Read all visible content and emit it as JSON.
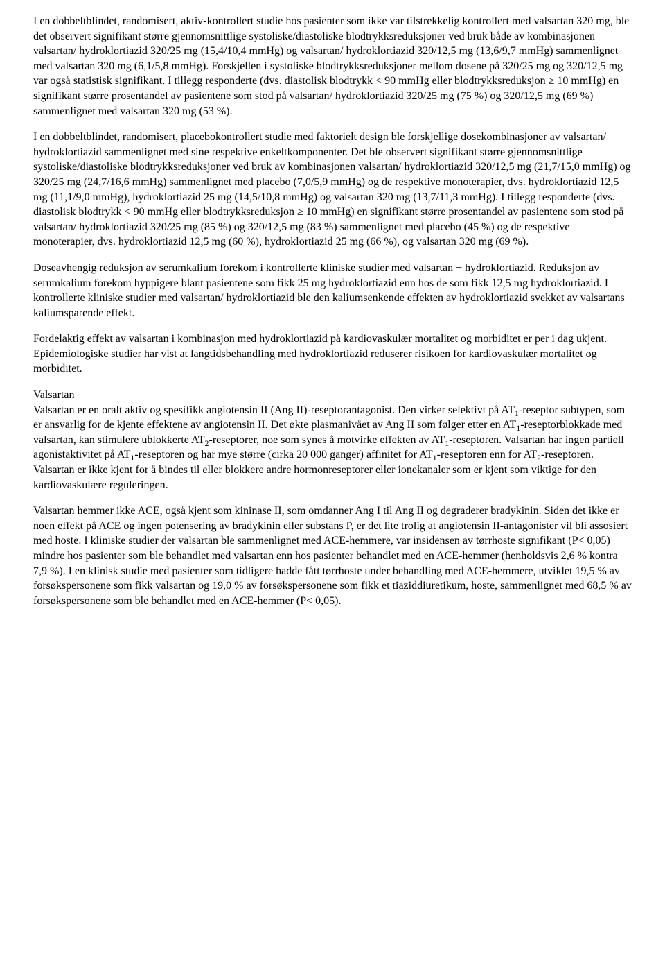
{
  "paragraphs": {
    "p1": "I en dobbeltblindet, randomisert, aktiv-kontrollert studie hos pasienter som ikke var tilstrekkelig kontrollert med valsartan 320 mg, ble det observert signifikant større gjennomsnittlige systoliske/diastoliske blodtrykksreduksjoner ved bruk både av kombinasjonen valsartan/ hydroklortiazid 320/25 mg (15,4/10,4 mmHg) og valsartan/ hydroklortiazid 320/12,5 mg (13,6/9,7 mmHg) sammenlignet med valsartan 320 mg (6,1/5,8 mmHg). Forskjellen i systoliske blodtrykksreduksjoner mellom dosene på 320/25 mg og 320/12,5 mg var også statistisk signifikant. I tillegg responderte (dvs. diastolisk blodtrykk < 90 mmHg eller blodtrykksreduksjon ≥ 10 mmHg) en signifikant større prosentandel av pasientene som stod på valsartan/ hydroklortiazid 320/25 mg (75 %) og 320/12,5 mg (69 %) sammenlignet med valsartan 320 mg (53 %).",
    "p2": "I en dobbeltblindet, randomisert, placebokontrollert studie med faktorielt design ble forskjellige dosekombinasjoner av valsartan/ hydroklortiazid sammenlignet med sine respektive enkeltkomponenter. Det ble observert signifikant større gjennomsnittlige systoliske/diastoliske blodtrykksreduksjoner ved bruk av kombinasjonen valsartan/ hydroklortiazid 320/12,5 mg (21,7/15,0 mmHg) og 320/25 mg (24,7/16,6 mmHg) sammenlignet med placebo (7,0/5,9 mmHg) og de respektive monoterapier, dvs. hydroklortiazid 12,5 mg (11,1/9,0 mmHg), hydroklortiazid 25 mg (14,5/10,8 mmHg) og valsartan 320 mg (13,7/11,3 mmHg). I tillegg responderte (dvs. diastolisk blodtrykk < 90 mmHg eller blodtrykksreduksjon ≥ 10 mmHg) en signifikant større prosentandel av pasientene som stod på valsartan/ hydroklortiazid 320/25 mg (85 %) og 320/12,5 mg (83 %) sammenlignet med placebo (45 %) og de respektive monoterapier, dvs. hydroklortiazid 12,5 mg (60 %), hydroklortiazid 25 mg (66 %), og valsartan 320 mg (69 %).",
    "p3": "Doseavhengig reduksjon av serumkalium forekom i kontrollerte kliniske studier med valsartan + hydroklortiazid. Reduksjon av serumkalium forekom hyppigere blant pasientene som fikk 25 mg hydroklortiazid enn hos de som fikk 12,5 mg hydroklortiazid. I kontrollerte kliniske studier med valsartan/ hydroklortiazid ble den kaliumsenkende effekten av hydroklortiazid svekket av valsartans kaliumsparende effekt.",
    "p4a": "Fordelaktig effekt av valsartan i kombinasjon med hydroklortiazid på kardiovaskulær mortalitet og morbiditet er per i dag ukjent.",
    "p4b": "Epidemiologiske studier har vist at langtidsbehandling med hydroklortiazid reduserer risikoen for kardiovaskulær mortalitet og morbiditet.",
    "heading_valsartan": "Valsartan",
    "p6": "Valsartan hemmer ikke ACE, også kjent som kininase II, som omdanner Ang I til Ang II og degraderer bradykinin. Siden det ikke er noen effekt på ACE og ingen potensering av bradykinin eller substans P, er det lite trolig at angiotensin II-antagonister vil bli assosiert med hoste. I kliniske studier der valsartan ble sammenlignet med ACE-hemmere, var insidensen av tørrhoste signifikant (P< 0,05) mindre hos pasienter som ble behandlet med valsartan enn hos pasienter behandlet med en ACE-hemmer (henholdsvis 2,6 % kontra 7,9 %). I en klinisk studie med pasienter som tidligere hadde fått tørrhoste under behandling med ACE-hemmere, utviklet 19,5 % av forsøkspersonene som fikk valsartan og 19,0 % av forsøkspersonene som fikk et tiaziddiuretikum, hoste, sammenlignet med 68,5 % av forsøkspersonene som ble behandlet med en ACE-hemmer (P< 0,05).",
    "p5_parts": {
      "t1": "Valsartan er en oralt aktiv og spesifikk angiotensin II (Ang II)-reseptorantagonist. Den virker selektivt på AT",
      "t2": "-reseptor subtypen, som er ansvarlig for de kjente effektene av angiotensin II. Det økte plasmanivået av Ang II som følger etter en AT",
      "t3": "-reseptorblokkade med valsartan, kan stimulere ublokkerte AT",
      "t4": "-reseptorer, noe som synes å motvirke effekten av AT",
      "t5": "-reseptoren. Valsartan har ingen partiell agonistaktivitet på AT",
      "t6": "-reseptoren og har mye større (cirka 20 000 ganger) affinitet for AT",
      "t7": "-reseptoren enn for AT",
      "t8": "-reseptoren. Valsartan er ikke kjent for å bindes til eller blokkere andre hormonreseptorer eller ionekanaler som er kjent som viktige for den kardiovaskulære reguleringen.",
      "s1": "1",
      "s2": "1",
      "s3": "2",
      "s4": "1",
      "s5": "1",
      "s6": "1",
      "s7": "2"
    }
  }
}
